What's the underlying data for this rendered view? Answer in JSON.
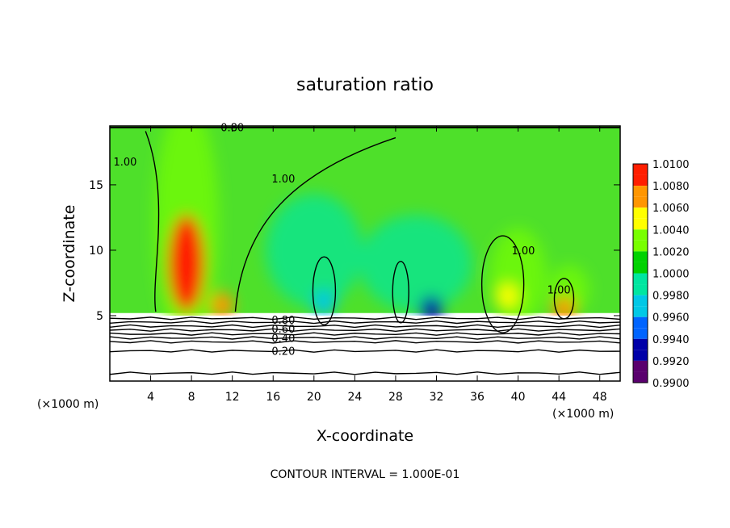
{
  "chart_data": {
    "type": "heatmap",
    "title": "saturation ratio",
    "xlabel": "X-coordinate",
    "ylabel": "Z-coordinate",
    "x_unit": "(×1000 m)",
    "x_ticks": [
      4,
      8,
      12,
      16,
      20,
      24,
      28,
      32,
      36,
      40,
      44,
      48
    ],
    "y_ticks": [
      5,
      10,
      15
    ],
    "xlim": [
      0,
      50
    ],
    "ylim": [
      0,
      19.5
    ],
    "colorbar": {
      "levels": [
        "1.0100",
        "1.0080",
        "1.0060",
        "1.0040",
        "1.0020",
        "1.0000",
        "0.9980",
        "0.9960",
        "0.9940",
        "0.9920",
        "0.9900"
      ],
      "range": [
        0.99,
        1.01
      ]
    },
    "contour_labels": [
      "0.80",
      "1.00",
      "1.00",
      "1.00",
      "1.00",
      "0.80",
      "0.60",
      "0.40",
      "0.20"
    ],
    "annotation": "CONTOUR INTERVAL = 1.000E-01",
    "features": [
      {
        "name": "updraft-core",
        "x": 7.5,
        "z": 9.0,
        "value": 1.008
      },
      {
        "name": "cell",
        "x": 39.0,
        "z": 6.5,
        "value": 1.004
      },
      {
        "name": "cell",
        "x": 44.5,
        "z": 5.5,
        "value": 1.006
      },
      {
        "name": "cell",
        "x": 11.0,
        "z": 5.8,
        "value": 1.007
      },
      {
        "name": "dry-pocket",
        "x": 31.5,
        "z": 5.5,
        "value": 0.992
      },
      {
        "name": "dry-pocket",
        "x": 21.0,
        "z": 6.0,
        "value": 0.996
      }
    ]
  }
}
